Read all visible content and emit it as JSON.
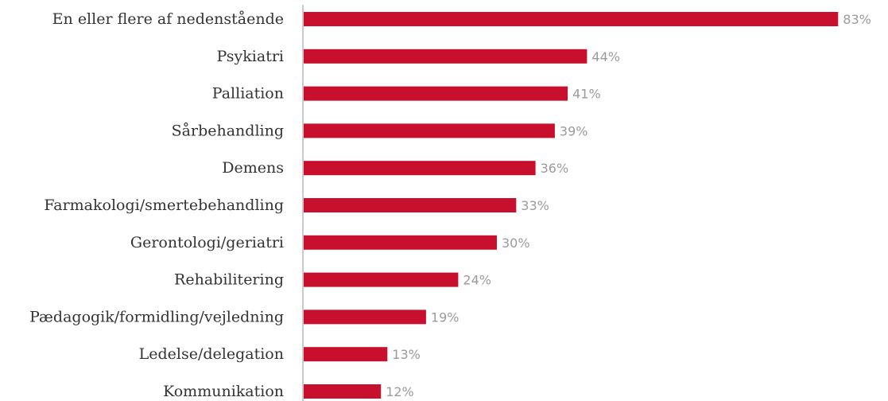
{
  "chart_data": {
    "type": "bar",
    "orientation": "horizontal",
    "categories": [
      "En eller flere af nedenstående",
      "Psykiatri",
      "Palliation",
      "Sårbehandling",
      "Demens",
      "Farmakologi/smertebehandling",
      "Gerontologi/geriatri",
      "Rehabilitering",
      "Pædagogik/formidling/vejledning",
      "Ledelse/delegation",
      "Kommunikation"
    ],
    "values": [
      83,
      44,
      41,
      39,
      36,
      33,
      30,
      24,
      19,
      13,
      12
    ],
    "value_labels": [
      "83%",
      "44%",
      "41%",
      "39%",
      "36%",
      "33%",
      "30%",
      "24%",
      "19%",
      "13%",
      "12%"
    ],
    "title": "",
    "xlabel": "",
    "ylabel": "",
    "xlim": [
      0,
      100
    ],
    "grid": false,
    "legend": "none",
    "colors": {
      "bar": "#c8102e",
      "value_label": "#9b9b9b",
      "category_label": "#333333",
      "axis": "#b8b8b8"
    }
  }
}
